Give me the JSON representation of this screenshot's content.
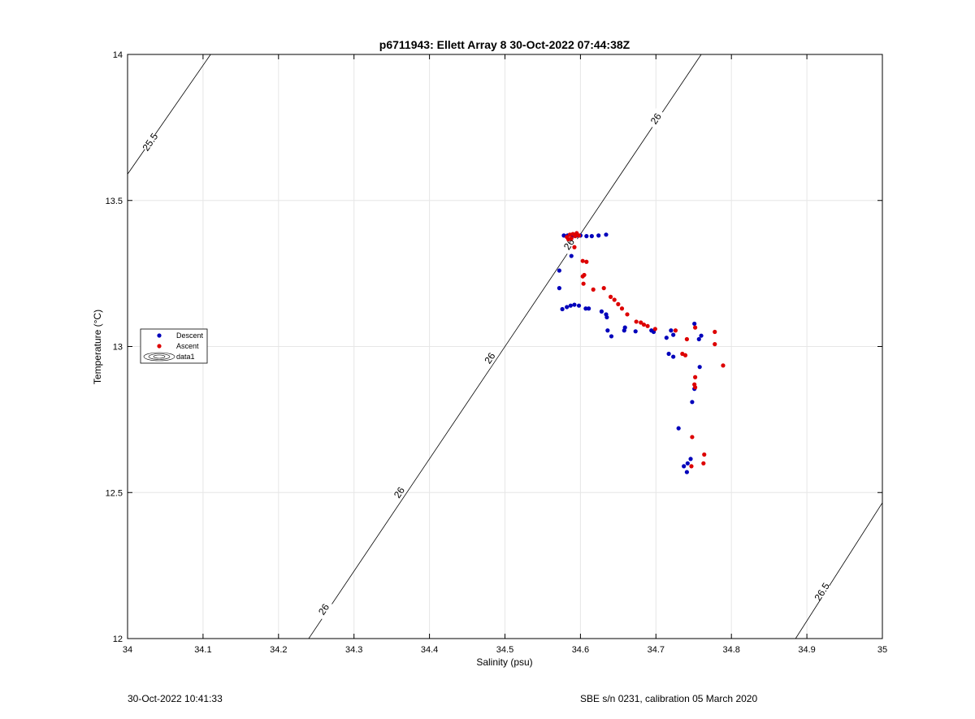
{
  "chart_data": {
    "type": "scatter",
    "title": "p6711943: Ellett Array 8 30-Oct-2022 07:44:38Z",
    "xlabel": "Salinity (psu)",
    "ylabel": "Temperature (°C)",
    "xlim": [
      34,
      35
    ],
    "ylim": [
      12,
      14
    ],
    "x_ticks": [
      "34",
      "34.1",
      "34.2",
      "34.3",
      "34.4",
      "34.5",
      "34.6",
      "34.7",
      "34.8",
      "34.9",
      "35"
    ],
    "y_ticks": [
      "12",
      "12.5",
      "13",
      "13.5",
      "14"
    ],
    "grid": true,
    "legend": "center-left",
    "colors": {
      "descent": "#0000bb",
      "ascent": "#dd0000",
      "contour": "#000000",
      "grid": "#e6e6e6"
    },
    "series": [
      {
        "name": "Descent",
        "color": "#0000bb",
        "points": [
          [
            34.578,
            13.38
          ],
          [
            34.583,
            13.38
          ],
          [
            34.59,
            13.38
          ],
          [
            34.595,
            13.38
          ],
          [
            34.6,
            13.38
          ],
          [
            34.608,
            13.378
          ],
          [
            34.615,
            13.378
          ],
          [
            34.624,
            13.38
          ],
          [
            34.634,
            13.383
          ],
          [
            34.588,
            13.31
          ],
          [
            34.572,
            13.26
          ],
          [
            34.572,
            13.2
          ],
          [
            34.576,
            13.128
          ],
          [
            34.582,
            13.135
          ],
          [
            34.587,
            13.14
          ],
          [
            34.592,
            13.143
          ],
          [
            34.598,
            13.14
          ],
          [
            34.607,
            13.13
          ],
          [
            34.611,
            13.13
          ],
          [
            34.628,
            13.12
          ],
          [
            34.634,
            13.11
          ],
          [
            34.635,
            13.1
          ],
          [
            34.636,
            13.055
          ],
          [
            34.641,
            13.035
          ],
          [
            34.659,
            13.065
          ],
          [
            34.658,
            13.055
          ],
          [
            34.673,
            13.052
          ],
          [
            34.694,
            13.055
          ],
          [
            34.697,
            13.05
          ],
          [
            34.714,
            13.03
          ],
          [
            34.72,
            13.055
          ],
          [
            34.723,
            13.04
          ],
          [
            34.717,
            12.975
          ],
          [
            34.723,
            12.965
          ],
          [
            34.751,
            13.078
          ],
          [
            34.757,
            13.025
          ],
          [
            34.76,
            13.037
          ],
          [
            34.758,
            12.93
          ],
          [
            34.751,
            12.855
          ],
          [
            34.748,
            12.81
          ],
          [
            34.73,
            12.72
          ],
          [
            34.737,
            12.59
          ],
          [
            34.742,
            12.6
          ],
          [
            34.746,
            12.615
          ],
          [
            34.741,
            12.57
          ]
        ]
      },
      {
        "name": "Ascent",
        "color": "#dd0000",
        "points": [
          [
            34.582,
            13.375
          ],
          [
            34.586,
            13.383
          ],
          [
            34.588,
            13.37
          ],
          [
            34.59,
            13.385
          ],
          [
            34.593,
            13.378
          ],
          [
            34.595,
            13.388
          ],
          [
            34.598,
            13.38
          ],
          [
            34.584,
            13.367
          ],
          [
            34.592,
            13.34
          ],
          [
            34.603,
            13.293
          ],
          [
            34.608,
            13.29
          ],
          [
            34.605,
            13.245
          ],
          [
            34.603,
            13.24
          ],
          [
            34.604,
            13.215
          ],
          [
            34.617,
            13.195
          ],
          [
            34.631,
            13.2
          ],
          [
            34.64,
            13.17
          ],
          [
            34.645,
            13.16
          ],
          [
            34.65,
            13.145
          ],
          [
            34.655,
            13.13
          ],
          [
            34.662,
            13.11
          ],
          [
            34.674,
            13.085
          ],
          [
            34.68,
            13.082
          ],
          [
            34.684,
            13.075
          ],
          [
            34.689,
            13.07
          ],
          [
            34.699,
            13.06
          ],
          [
            34.726,
            13.055
          ],
          [
            34.735,
            12.975
          ],
          [
            34.739,
            12.97
          ],
          [
            34.741,
            13.025
          ],
          [
            34.752,
            13.065
          ],
          [
            34.752,
            12.895
          ],
          [
            34.751,
            12.87
          ],
          [
            34.752,
            12.86
          ],
          [
            34.748,
            12.69
          ],
          [
            34.747,
            12.59
          ],
          [
            34.763,
            12.6
          ],
          [
            34.764,
            12.63
          ],
          [
            34.778,
            13.05
          ],
          [
            34.778,
            13.008
          ],
          [
            34.789,
            12.935
          ]
        ]
      },
      {
        "name": "data1",
        "legend_icon": "contour-ellipses",
        "contours": [
          {
            "label": "25.5",
            "x": [
              34.0,
              34.11
            ],
            "y": [
              13.59,
              14.0
            ],
            "label_at": [
              34.03,
              13.7
            ]
          },
          {
            "label": "26",
            "x": [
              34.24,
              34.76
            ],
            "y": [
              12.0,
              14.0
            ],
            "label_at": [
              [
                34.26,
                12.1
              ],
              [
                34.36,
                12.5
              ],
              [
                34.48,
                12.96
              ],
              [
                34.585,
                13.35
              ],
              [
                34.7,
                13.78
              ]
            ]
          },
          {
            "label": "26.5",
            "x": [
              34.885,
              35.0
            ],
            "y": [
              12.0,
              12.465
            ],
            "label_at": [
              34.92,
              12.16
            ]
          }
        ]
      }
    ]
  },
  "footer": {
    "timestamp": "30-Oct-2022 10:41:33",
    "instrument": "SBE s/n 0231, calibration 05 March 2020"
  }
}
